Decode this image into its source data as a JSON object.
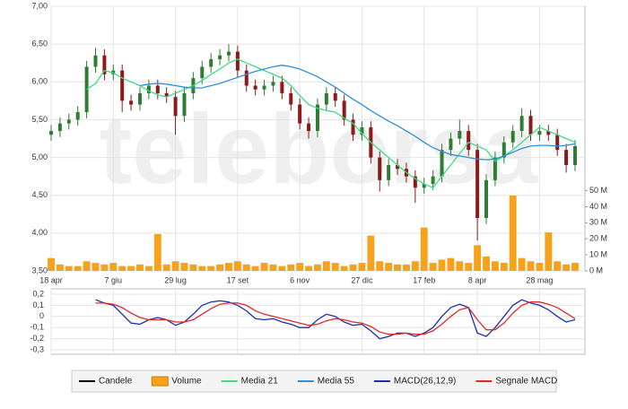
{
  "chart_data": {
    "type": "candlestick",
    "watermark": "teleborsa",
    "categories": [
      "18 apr",
      null,
      null,
      null,
      null,
      null,
      null,
      "7 giu",
      null,
      null,
      null,
      null,
      null,
      null,
      "29 lug",
      null,
      null,
      null,
      null,
      null,
      null,
      "17 set",
      null,
      null,
      null,
      null,
      null,
      null,
      "6 nov",
      null,
      null,
      null,
      null,
      null,
      null,
      "27 dic",
      null,
      null,
      null,
      null,
      null,
      null,
      "17 feb",
      null,
      null,
      null,
      null,
      null,
      "8 apr",
      null,
      null,
      null,
      null,
      null,
      null,
      "28 mag",
      null,
      null,
      null,
      null
    ],
    "ylim": [
      3.5,
      7.0
    ],
    "yticks": [
      {
        "value": 3.5,
        "label": "3,50"
      },
      {
        "value": 4.0,
        "label": "4,00"
      },
      {
        "value": 4.5,
        "label": "4,50"
      },
      {
        "value": 5.0,
        "label": "5,00"
      },
      {
        "value": 5.5,
        "label": "5,50"
      },
      {
        "value": 6.0,
        "label": "6,00"
      },
      {
        "value": 6.5,
        "label": "6,50"
      },
      {
        "value": 7.0,
        "label": "7,00"
      }
    ],
    "y2lim": [
      0,
      165
    ],
    "y2ticks": [
      {
        "value": 0,
        "label": "0 M"
      },
      {
        "value": 10,
        "label": "10 M"
      },
      {
        "value": 20,
        "label": "20 M"
      },
      {
        "value": 30,
        "label": "30 M"
      },
      {
        "value": 40,
        "label": "40 M"
      },
      {
        "value": 50,
        "label": "50 M"
      }
    ],
    "y3lim": [
      -0.3,
      0.2
    ],
    "y3ticks": [
      {
        "value": 0.2,
        "label": "0,2"
      },
      {
        "value": 0.1,
        "label": "0,1"
      },
      0,
      {
        "value": -0.1,
        "label": "-0,1"
      },
      {
        "value": -0.2,
        "label": "-0,2"
      },
      {
        "value": -0.3,
        "label": "-0,3"
      }
    ],
    "grid": true,
    "series": [
      {
        "name": "Candele",
        "type": "candlestick",
        "color": "#000000",
        "up_color": "#2e7d32",
        "down_color": "#8b1a1a",
        "open": [
          5.3,
          5.35,
          5.45,
          5.5,
          5.6,
          6.2,
          6.35,
          6.1,
          6.15,
          5.75,
          5.7,
          5.85,
          5.95,
          5.85,
          5.8,
          5.55,
          5.85,
          6.05,
          6.2,
          6.3,
          6.35,
          6.4,
          6.15,
          5.95,
          5.9,
          5.95,
          6.0,
          5.85,
          5.7,
          5.45,
          5.35,
          5.7,
          5.85,
          5.75,
          5.5,
          5.3,
          5.4,
          5.0,
          4.7,
          4.9,
          4.85,
          4.75,
          4.6,
          4.65,
          4.75,
          5.1,
          5.25,
          5.35,
          5.1,
          4.2,
          4.7,
          5.0,
          5.2,
          5.35,
          5.55,
          5.3,
          5.35,
          5.3,
          5.1,
          4.9
        ],
        "high": [
          5.43,
          5.53,
          5.58,
          5.68,
          6.28,
          6.45,
          6.43,
          6.23,
          6.23,
          5.83,
          5.93,
          6.03,
          6.03,
          5.93,
          5.88,
          5.93,
          6.13,
          6.28,
          6.38,
          6.43,
          6.5,
          6.48,
          6.23,
          6.03,
          6.03,
          6.08,
          6.08,
          5.93,
          5.78,
          5.53,
          5.78,
          5.93,
          5.93,
          5.83,
          5.58,
          5.48,
          5.48,
          5.08,
          4.98,
          4.98,
          4.93,
          4.83,
          4.73,
          4.83,
          5.18,
          5.33,
          5.5,
          5.43,
          5.18,
          4.78,
          5.08,
          5.28,
          5.43,
          5.65,
          5.63,
          5.43,
          5.43,
          5.38,
          5.18,
          5.23
        ],
        "low": [
          5.22,
          5.27,
          5.37,
          5.42,
          5.52,
          6.12,
          6.02,
          6.02,
          5.6,
          5.62,
          5.62,
          5.77,
          5.77,
          5.72,
          5.3,
          5.47,
          5.77,
          5.97,
          6.12,
          6.22,
          6.27,
          6.07,
          5.87,
          5.82,
          5.82,
          5.87,
          5.77,
          5.62,
          5.37,
          5.25,
          5.27,
          5.62,
          5.67,
          5.42,
          5.22,
          5.22,
          4.92,
          4.55,
          4.62,
          4.77,
          4.67,
          4.4,
          4.52,
          4.57,
          4.67,
          5.02,
          5.17,
          5.02,
          3.9,
          4.12,
          4.62,
          4.92,
          5.12,
          5.27,
          5.22,
          5.22,
          5.22,
          5.02,
          4.8,
          4.82
        ],
        "close": [
          5.35,
          5.45,
          5.5,
          5.6,
          6.2,
          6.35,
          6.1,
          6.15,
          5.75,
          5.7,
          5.85,
          5.95,
          5.85,
          5.8,
          5.55,
          5.85,
          6.05,
          6.2,
          6.3,
          6.35,
          6.4,
          6.15,
          5.95,
          5.9,
          5.95,
          6.0,
          5.85,
          5.7,
          5.45,
          5.35,
          5.7,
          5.85,
          5.75,
          5.5,
          5.3,
          5.4,
          5.0,
          4.7,
          4.9,
          4.85,
          4.75,
          4.6,
          4.65,
          4.75,
          5.1,
          5.25,
          5.35,
          5.1,
          4.2,
          4.7,
          5.0,
          5.2,
          5.35,
          5.55,
          5.3,
          5.35,
          5.3,
          5.1,
          4.9,
          5.15
        ]
      },
      {
        "name": "Volume",
        "type": "bar",
        "axis": "y2",
        "color": "#f7a21b",
        "values": [
          8,
          4,
          3,
          3,
          6,
          5,
          4,
          5,
          3,
          3,
          4,
          3,
          23,
          4,
          6,
          5,
          4,
          3,
          3,
          4,
          5,
          6,
          4,
          3,
          5,
          4,
          3,
          4,
          5,
          3,
          4,
          6,
          5,
          3,
          4,
          5,
          22,
          6,
          5,
          4,
          4,
          6,
          27,
          5,
          7,
          8,
          6,
          5,
          16,
          9,
          6,
          5,
          47,
          8,
          6,
          5,
          24,
          6,
          4,
          5
        ]
      },
      {
        "name": "Media 21",
        "type": "line",
        "color": "#3ddc84",
        "values": [
          null,
          null,
          null,
          null,
          5.9,
          5.98,
          6.15,
          6.12,
          6.05,
          6.0,
          5.95,
          5.88,
          5.83,
          5.8,
          5.85,
          5.9,
          5.95,
          6.02,
          6.1,
          6.17,
          6.25,
          6.3,
          6.25,
          6.2,
          6.15,
          6.1,
          6.05,
          5.95,
          5.82,
          5.7,
          5.65,
          5.62,
          5.6,
          5.52,
          5.45,
          5.32,
          5.2,
          5.1,
          5.0,
          4.9,
          4.8,
          4.72,
          4.65,
          4.6,
          4.75,
          4.9,
          5.05,
          5.2,
          5.15,
          5.1,
          4.95,
          5.02,
          5.1,
          5.2,
          5.3,
          5.4,
          5.35,
          5.3,
          5.25,
          5.2
        ]
      },
      {
        "name": "Media 55",
        "type": "line",
        "color": "#2f8fd8",
        "values": [
          null,
          null,
          null,
          null,
          null,
          null,
          null,
          null,
          null,
          null,
          5.95,
          5.97,
          5.98,
          5.97,
          5.95,
          5.93,
          5.92,
          5.92,
          5.95,
          5.98,
          6.02,
          6.06,
          6.1,
          6.14,
          6.17,
          6.2,
          6.22,
          6.2,
          6.17,
          6.12,
          6.07,
          6.0,
          5.93,
          5.85,
          5.77,
          5.7,
          5.62,
          5.55,
          5.48,
          5.42,
          5.35,
          5.28,
          5.2,
          5.13,
          5.08,
          5.04,
          5.02,
          5.0,
          4.98,
          4.97,
          4.98,
          5.02,
          5.07,
          5.12,
          5.15,
          5.16,
          5.16,
          5.15,
          5.16,
          5.18
        ]
      },
      {
        "name": "MACD(26,12,9)",
        "type": "line",
        "axis": "y3",
        "color": "#1c2fa8",
        "values": [
          null,
          null,
          null,
          null,
          null,
          0.15,
          0.12,
          0.1,
          0.02,
          -0.06,
          -0.07,
          -0.03,
          -0.01,
          -0.03,
          -0.08,
          -0.05,
          0.02,
          0.1,
          0.13,
          0.14,
          0.13,
          0.1,
          0.05,
          -0.02,
          -0.03,
          -0.02,
          -0.05,
          -0.07,
          -0.1,
          -0.1,
          -0.03,
          0.02,
          0.0,
          -0.05,
          -0.08,
          -0.07,
          -0.13,
          -0.2,
          -0.18,
          -0.15,
          -0.15,
          -0.18,
          -0.15,
          -0.1,
          0.0,
          0.08,
          0.11,
          0.08,
          -0.15,
          -0.18,
          -0.1,
          0.0,
          0.1,
          0.15,
          0.12,
          0.1,
          0.06,
          0.0,
          -0.05,
          -0.03
        ]
      },
      {
        "name": "Segnale MACD",
        "type": "line",
        "axis": "y3",
        "color": "#e0282e",
        "values": [
          null,
          null,
          null,
          null,
          null,
          0.12,
          0.12,
          0.11,
          0.08,
          0.03,
          -0.01,
          -0.03,
          -0.03,
          -0.03,
          -0.05,
          -0.05,
          -0.03,
          0.02,
          0.07,
          0.11,
          0.12,
          0.12,
          0.1,
          0.05,
          0.02,
          0.0,
          -0.02,
          -0.04,
          -0.06,
          -0.08,
          -0.07,
          -0.04,
          -0.02,
          -0.03,
          -0.05,
          -0.06,
          -0.09,
          -0.14,
          -0.16,
          -0.16,
          -0.15,
          -0.16,
          -0.16,
          -0.13,
          -0.07,
          0.0,
          0.06,
          0.08,
          -0.03,
          -0.12,
          -0.12,
          -0.06,
          0.03,
          0.1,
          0.13,
          0.13,
          0.11,
          0.08,
          0.03,
          -0.02
        ]
      }
    ]
  }
}
